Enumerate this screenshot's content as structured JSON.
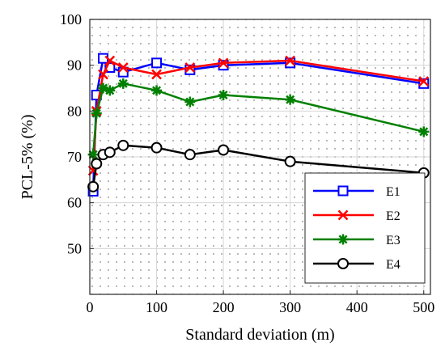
{
  "chart_data": {
    "type": "line",
    "title": "",
    "xlabel": "Standard deviation (m)",
    "ylabel": "PCL-5% (%)",
    "xlim": [
      0,
      510
    ],
    "ylim": [
      40,
      100
    ],
    "xticks": [
      0,
      100,
      200,
      300,
      400,
      500
    ],
    "yticks": [
      50,
      60,
      70,
      80,
      90,
      100
    ],
    "grid": true,
    "legend_position": "bottom-right",
    "series": [
      {
        "name": "E1",
        "color": "#0000ff",
        "marker": "square",
        "x": [
          5,
          10,
          20,
          30,
          50,
          100,
          150,
          200,
          300,
          500
        ],
        "y": [
          62.5,
          83.5,
          91.5,
          89.5,
          88.5,
          90.5,
          89.0,
          90.0,
          90.5,
          86.0
        ]
      },
      {
        "name": "E2",
        "color": "#ff0000",
        "marker": "x",
        "x": [
          5,
          10,
          20,
          30,
          50,
          100,
          150,
          200,
          300,
          500
        ],
        "y": [
          67.0,
          80.0,
          88.0,
          91.0,
          89.5,
          88.0,
          89.5,
          90.5,
          91.0,
          86.5
        ]
      },
      {
        "name": "E3",
        "color": "#008000",
        "marker": "star",
        "x": [
          5,
          10,
          20,
          30,
          50,
          100,
          150,
          200,
          300,
          500
        ],
        "y": [
          70.5,
          79.5,
          85.0,
          84.5,
          86.0,
          84.5,
          82.0,
          83.5,
          82.5,
          75.5
        ]
      },
      {
        "name": "E4",
        "color": "#000000",
        "marker": "circle",
        "x": [
          5,
          10,
          20,
          30,
          50,
          100,
          150,
          200,
          300,
          500
        ],
        "y": [
          63.5,
          68.5,
          70.5,
          71.0,
          72.5,
          72.0,
          70.5,
          71.5,
          69.0,
          66.5
        ]
      }
    ]
  }
}
